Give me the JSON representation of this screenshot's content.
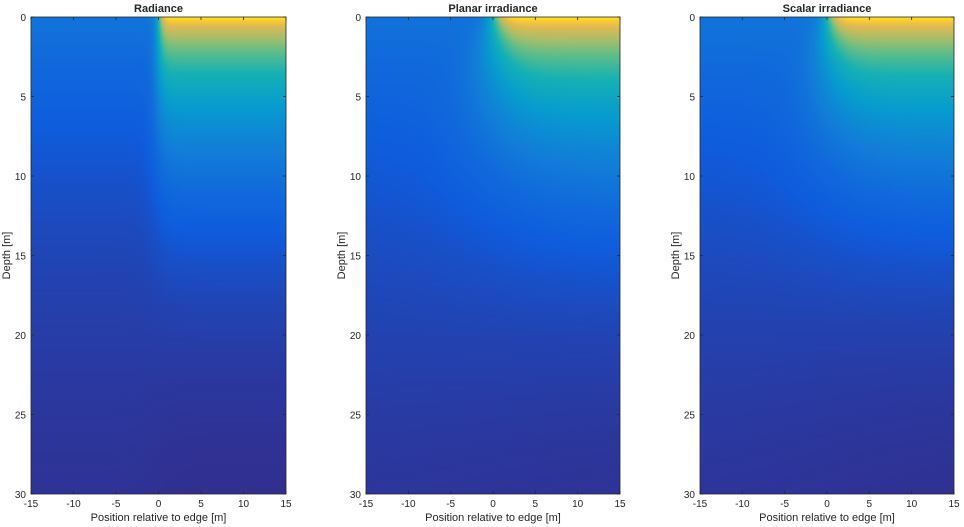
{
  "chart_data": [
    {
      "type": "heatmap",
      "title": "Radiance",
      "xlabel": "Position relative to edge [m]",
      "ylabel": "Depth [m]",
      "xlim": [
        -15,
        15
      ],
      "ylim": [
        0,
        30
      ],
      "y_reversed": true,
      "x_ticks": [
        "-15",
        "-10",
        "-5",
        "0",
        "5",
        "10",
        "15"
      ],
      "y_ticks": [
        "0",
        "5",
        "10",
        "15",
        "20",
        "25",
        "30"
      ],
      "colormap": "parula",
      "color_low": "#352a87",
      "color_high": "#f9fb0e",
      "field": "radiance"
    },
    {
      "type": "heatmap",
      "title": "Planar irradiance",
      "xlabel": "Position relative to edge [m]",
      "ylabel": "Depth [m]",
      "xlim": [
        -15,
        15
      ],
      "ylim": [
        0,
        30
      ],
      "y_reversed": true,
      "x_ticks": [
        "-15",
        "-10",
        "-5",
        "0",
        "5",
        "10",
        "15"
      ],
      "y_ticks": [
        "0",
        "5",
        "10",
        "15",
        "20",
        "25",
        "30"
      ],
      "colormap": "parula",
      "color_low": "#352a87",
      "color_high": "#f9fb0e",
      "field": "planar"
    },
    {
      "type": "heatmap",
      "title": "Scalar irradiance",
      "xlabel": "Position relative to edge [m]",
      "ylabel": "Depth [m]",
      "xlim": [
        -15,
        15
      ],
      "ylim": [
        0,
        30
      ],
      "y_reversed": true,
      "x_ticks": [
        "-15",
        "-10",
        "-5",
        "0",
        "5",
        "10",
        "15"
      ],
      "y_ticks": [
        "0",
        "5",
        "10",
        "15",
        "20",
        "25",
        "30"
      ],
      "colormap": "parula",
      "color_low": "#352a87",
      "color_high": "#f9fb0e",
      "field": "scalar"
    }
  ]
}
